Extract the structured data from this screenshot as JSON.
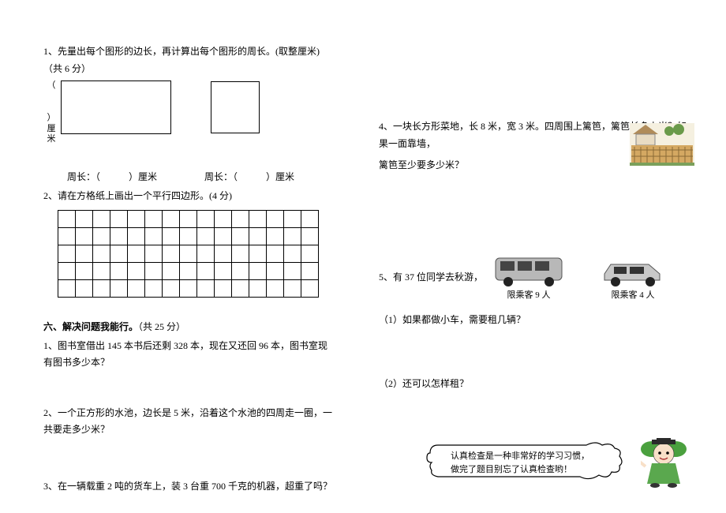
{
  "left": {
    "q1_title": "1、先量出每个图形的边长，再计算出每个图形的周长。(取整厘米)（共 6 分）",
    "bracket_open": "（",
    "bracket_close": "）",
    "unit_cm_vertical1": "厘",
    "unit_cm_vertical2": "米",
    "perimeter1": "周长：（　　　）厘米",
    "perimeter2": "周长：（　　　）厘米",
    "q2_title": "2、请在方格纸上画出一个平行四边形。(4 分)",
    "section6": "六、解决问题我能行。",
    "section6_points": "（共 25 分）",
    "q6_1": "1、图书室借出 145 本书后还剩 328 本，现在又还回 96 本，图书室现有图书多少本？",
    "q6_2": "2、一个正方形的水池，边长是 5 米，沿着这个水池的四周走一圈，一共要走多少米？",
    "q6_3": "3、在一辆载重 2 吨的货车上，装 3 台重 700 千克的机器，超重了吗？"
  },
  "right": {
    "q4": "4、一块长方形菜地，长 8 米，宽 3 米。四周围上篱笆，篱笆长多少米？如果一面靠墙，",
    "q4b": "篱笆至少要多少米？",
    "q5_prefix": "5、有 37 位同学去秋游，",
    "van_label": "限乘客 9 人",
    "car_label": "限乘客 4 人",
    "q5_sub1": "（1）如果都做小车，需要租几辆？",
    "q5_sub2": "（2）还可以怎样租？",
    "bubble_l1": "认真检查是一种非常好的学习习惯，",
    "bubble_l2": "做完了题目别忘了认真检查哟！"
  },
  "grid": {
    "rows": 5,
    "cols": 15
  },
  "colors": {
    "garden_roof": "#b08c5a",
    "garden_wall": "#e8dcc4",
    "garden_fence": "#d4a862",
    "garden_grass": "#7ba05b",
    "van_body": "#b8b8b8",
    "van_window": "#444444",
    "car_body": "#c8c8c8",
    "car_window": "#333333",
    "wheel": "#222222",
    "bubble_stroke": "#000000",
    "mascot_hat": "#2a2a2a",
    "mascot_face": "#f8e0c8",
    "mascot_dress": "#5aa84e",
    "mascot_hair": "#4aa03e"
  }
}
